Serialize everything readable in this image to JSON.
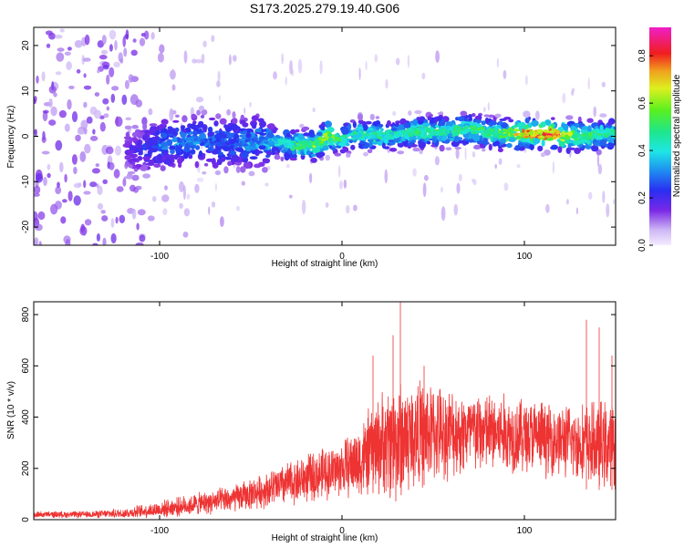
{
  "title": "S173.2025.279.19.40.G06",
  "chart_data": [
    {
      "type": "heatmap",
      "title": "S173.2025.279.19.40.G06",
      "xlabel": "Height of straight line (km)",
      "ylabel": "Frequency (Hz)",
      "xlim": [
        -169,
        150
      ],
      "ylim": [
        -24,
        24
      ],
      "x_ticks": [
        -100,
        0,
        100
      ],
      "y_ticks": [
        -20,
        -10,
        0,
        10,
        20
      ],
      "colorbar": {
        "label": "Normalized spectral amplitude",
        "range": [
          0.0,
          0.92
        ],
        "ticks": [
          0.0,
          0.2,
          0.4,
          0.6,
          0.8
        ]
      },
      "ridge": {
        "x": [
          -115,
          -100,
          -80,
          -60,
          -40,
          -25,
          -15,
          -8,
          0,
          10,
          25,
          40,
          55,
          70,
          85,
          100,
          115,
          130,
          150
        ],
        "frequency": [
          -3,
          -2,
          -1,
          -1.5,
          -1,
          -2,
          -2,
          0,
          -0.5,
          0.5,
          0,
          1,
          1,
          1.5,
          0.5,
          0.5,
          0.5,
          0,
          0.5
        ],
        "peak_amplitude": [
          0.15,
          0.3,
          0.35,
          0.3,
          0.4,
          0.55,
          0.6,
          0.7,
          0.5,
          0.5,
          0.5,
          0.55,
          0.5,
          0.55,
          0.55,
          0.8,
          0.9,
          0.6,
          0.5
        ]
      },
      "noise_region_x": [
        -169,
        -105
      ]
    },
    {
      "type": "line",
      "xlabel": "Height of straight line (km)",
      "ylabel": "SNR (10 * v/v)",
      "xlim": [
        -169,
        150
      ],
      "ylim": [
        0,
        850
      ],
      "x_ticks": [
        -100,
        0,
        100
      ],
      "y_ticks": [
        0,
        200,
        400,
        600,
        800
      ],
      "color": "#ee3333",
      "envelope": {
        "x": [
          -169,
          -140,
          -120,
          -100,
          -80,
          -60,
          -45,
          -30,
          -15,
          0,
          10,
          20,
          30,
          40,
          50,
          60,
          80,
          100,
          120,
          130,
          140,
          150
        ],
        "mean": [
          20,
          20,
          25,
          40,
          60,
          80,
          110,
          140,
          170,
          200,
          230,
          290,
          310,
          330,
          340,
          340,
          340,
          330,
          310,
          300,
          290,
          290
        ],
        "spread": [
          12,
          12,
          18,
          30,
          40,
          50,
          60,
          80,
          90,
          100,
          140,
          180,
          230,
          200,
          180,
          160,
          150,
          140,
          130,
          140,
          160,
          160
        ]
      },
      "spikes": [
        {
          "x": 32,
          "y": 850
        },
        {
          "x": 28,
          "y": 720
        },
        {
          "x": 17,
          "y": 640
        },
        {
          "x": 45,
          "y": 600
        },
        {
          "x": 134,
          "y": 780
        },
        {
          "x": 141,
          "y": 750
        },
        {
          "x": 148,
          "y": 640
        }
      ]
    }
  ]
}
